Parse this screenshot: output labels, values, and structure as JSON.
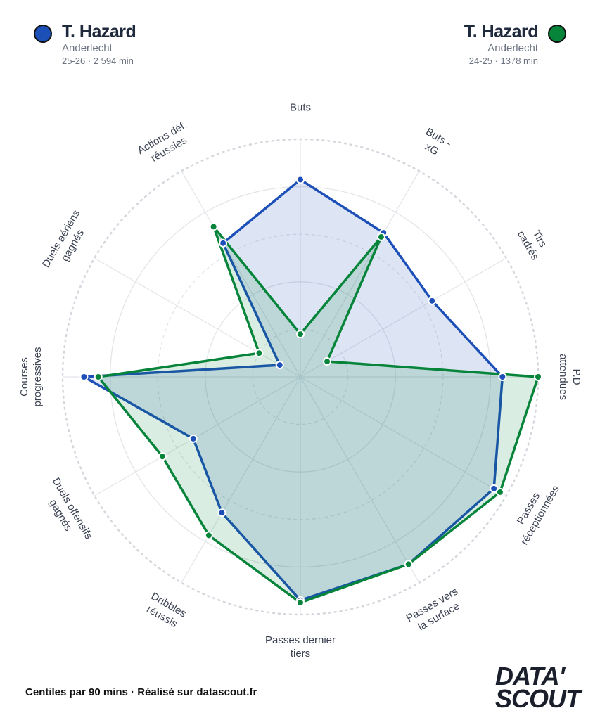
{
  "players": [
    {
      "name": "T. Hazard",
      "team": "Anderlecht",
      "meta": "25-26 · 2 594 min",
      "color": "#1d4fb8"
    },
    {
      "name": "T. Hazard",
      "team": "Anderlecht",
      "meta": "24-25 · 1378 min",
      "color": "#06843a"
    }
  ],
  "footer": "Centiles par 90 mins · Réalisé sur datascout.fr",
  "logo": {
    "line1": "DATA'",
    "line2": "SCOUT"
  },
  "chart_data": {
    "type": "radar",
    "axes": [
      [
        "Buts"
      ],
      [
        "Buts -",
        "xG"
      ],
      [
        "Tirs",
        "cadrés"
      ],
      [
        "P.D",
        "attendues"
      ],
      [
        "Passes",
        "réceptionnées"
      ],
      [
        "Passes vers",
        "la surface"
      ],
      [
        "Passes dernier",
        "tiers"
      ],
      [
        "Dribbles",
        "réussis"
      ],
      [
        "Duels offensifs",
        "gagnés"
      ],
      [
        "Courses",
        "progressives"
      ],
      [
        "Duels aériens",
        "gagnés"
      ],
      [
        "Actions déf.",
        "réussies"
      ]
    ],
    "range": [
      0,
      100
    ],
    "rings": [
      20,
      40,
      60,
      80,
      100
    ],
    "series": [
      {
        "name": "T. Hazard 25-26",
        "color": "#1d4fb8",
        "values": [
          83,
          70,
          64,
          85,
          94,
          91,
          94,
          66,
          52,
          91,
          10,
          65
        ]
      },
      {
        "name": "T. Hazard 24-25",
        "color": "#06843a",
        "values": [
          18,
          68,
          13,
          100,
          97,
          91,
          95,
          77,
          67,
          85,
          20,
          73
        ]
      }
    ]
  }
}
